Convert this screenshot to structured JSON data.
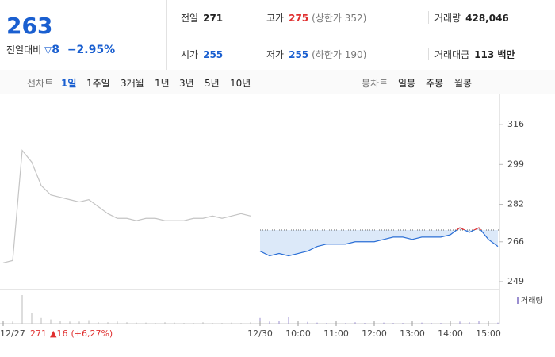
{
  "quote": {
    "price": "263",
    "change_label": "전일대비",
    "change": "8",
    "change_rate": "−2.95%"
  },
  "info": [
    {
      "label": "전일",
      "value": "271"
    },
    {
      "label": "고가",
      "value": "275",
      "note": "(상한가 352)"
    },
    {
      "label": "거래량",
      "value": "428,046"
    },
    {
      "label": "시가",
      "value": "255"
    },
    {
      "label": "저가",
      "value": "255",
      "note": "(하한가 190)"
    },
    {
      "label": "거래대금",
      "value": "113 백만"
    }
  ],
  "tabs": {
    "line_label": "선차트",
    "line": [
      "1일",
      "1주일",
      "3개월",
      "1년",
      "3년",
      "5년",
      "10년"
    ],
    "candle_label": "봉차트",
    "candle": [
      "일봉",
      "주봉",
      "월봉"
    ]
  },
  "chart_data": {
    "type": "line",
    "categories": [
      "12/27",
      null,
      null,
      null,
      null,
      null,
      null,
      null,
      null,
      null,
      null,
      null,
      null,
      null,
      null,
      null,
      null,
      null,
      null,
      null,
      null,
      null,
      null,
      null,
      null,
      null,
      null,
      "12/30",
      null,
      null,
      null,
      "10:00",
      null,
      null,
      null,
      "11:00",
      null,
      null,
      null,
      "12:00",
      null,
      null,
      null,
      "13:00",
      null,
      null,
      null,
      "14:00",
      null,
      null,
      null,
      "15:00",
      null
    ],
    "series": [
      {
        "color": "#c4c4c4",
        "values": [
          257,
          258,
          305,
          300,
          290,
          286,
          285,
          284,
          283,
          284,
          281,
          278,
          276,
          276,
          275,
          276,
          276,
          275,
          275,
          275,
          276,
          276,
          277,
          276,
          277,
          278,
          277,
          null,
          null,
          null,
          null,
          null,
          null,
          null,
          null,
          null,
          null,
          null,
          null,
          null,
          null,
          null,
          null,
          null,
          null,
          null,
          null,
          null,
          null,
          null,
          null,
          null,
          null
        ]
      },
      {
        "color": "#2b6fd6",
        "up_color": "#e03030",
        "fill": "#dce9f9",
        "values": [
          null,
          null,
          null,
          null,
          null,
          null,
          null,
          null,
          null,
          null,
          null,
          null,
          null,
          null,
          null,
          null,
          null,
          null,
          null,
          null,
          null,
          null,
          null,
          null,
          null,
          null,
          null,
          262,
          260,
          261,
          260,
          261,
          262,
          264,
          265,
          265,
          265,
          266,
          266,
          266,
          267,
          268,
          268,
          267,
          268,
          268,
          268,
          269,
          272,
          270,
          272,
          267,
          264
        ]
      }
    ],
    "reference_line": 271,
    "ylim": [
      245.6,
      321.8
    ],
    "yticks": [
      316,
      299,
      282,
      266,
      249
    ],
    "volume": {
      "name": "거래량",
      "color": "#9b8fd0",
      "values": [
        2000,
        3000,
        40000,
        15000,
        8000,
        6000,
        4000,
        3000,
        3000,
        5000,
        2000,
        2000,
        3000,
        2000,
        1500,
        1500,
        1000,
        2000,
        1500,
        1000,
        1000,
        2000,
        1000,
        1000,
        1500,
        1000,
        2000,
        8000,
        3000,
        4000,
        9000,
        2000,
        2500,
        1500,
        1000,
        1500,
        1000,
        2000,
        1000,
        1000,
        1500,
        1000,
        1000,
        2000,
        1500,
        1000,
        1000,
        2500,
        3000,
        2000,
        3500,
        2000,
        1500
      ]
    },
    "annotation": {
      "close": "271",
      "change": "▲16",
      "rate": "(+6,27%)"
    }
  }
}
